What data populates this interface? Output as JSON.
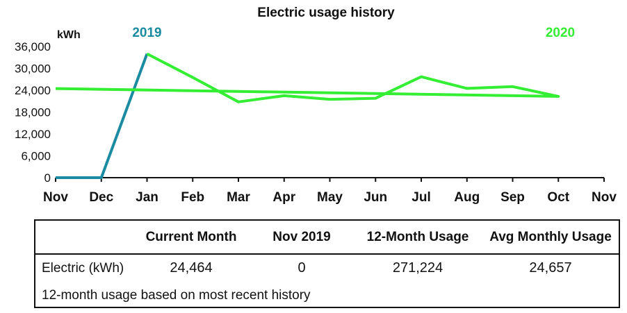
{
  "chart_data": {
    "type": "line",
    "title": "Electric usage history",
    "ylabel": "kWh",
    "ylim": [
      0,
      36000
    ],
    "yticks": [
      "36,000",
      "30,000",
      "24,000",
      "18,000",
      "12,000",
      "6,000",
      "0"
    ],
    "categories": [
      "Nov",
      "Dec",
      "Jan",
      "Feb",
      "Mar",
      "Apr",
      "May",
      "Jun",
      "Jul",
      "Aug",
      "Sep",
      "Oct",
      "Nov"
    ],
    "series": [
      {
        "name": "2019",
        "color": "#1a8ba0",
        "x": [
          "Nov",
          "Dec",
          "Jan"
        ],
        "values": [
          0,
          0,
          34000
        ]
      },
      {
        "name": "2020",
        "color": "#33ee33",
        "x": [
          "Jan",
          "Feb",
          "Mar",
          "Apr",
          "May",
          "Jun",
          "Jul",
          "Aug",
          "Sep",
          "Oct",
          "Nov"
        ],
        "values": [
          34000,
          27500,
          20800,
          22500,
          21500,
          21800,
          27700,
          24500,
          25000,
          22300,
          24464
        ]
      }
    ],
    "grid": false,
    "legend": "top"
  },
  "summary": {
    "headers": [
      "Current Month",
      "Nov 2019",
      "12-Month Usage",
      "Avg Monthly Usage"
    ],
    "row_label": "Electric (kWh)",
    "values": [
      "24,464",
      "0",
      "271,224",
      "24,657"
    ],
    "note": "12-month usage based on most recent history"
  }
}
